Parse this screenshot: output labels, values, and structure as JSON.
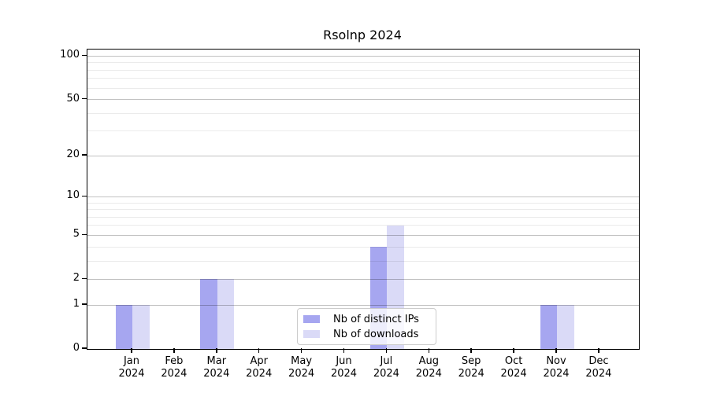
{
  "chart_data": {
    "type": "bar",
    "title": "Rsolnp 2024",
    "months": [
      "Jan",
      "Feb",
      "Mar",
      "Apr",
      "May",
      "Jun",
      "Jul",
      "Aug",
      "Sep",
      "Oct",
      "Nov",
      "Dec"
    ],
    "year": "2024",
    "series": [
      {
        "name": "Nb of distinct IPs",
        "color": "#a6a6f0",
        "values": [
          1,
          0,
          2,
          0,
          0,
          0,
          4,
          0,
          0,
          0,
          1,
          0
        ]
      },
      {
        "name": "Nb of downloads",
        "color": "#dadaf7",
        "values": [
          1,
          0,
          2,
          0,
          0,
          0,
          6,
          0,
          0,
          0,
          1,
          0
        ]
      }
    ],
    "yscale": "log1p",
    "ylim": [
      0,
      111
    ],
    "y_major_ticks": [
      0,
      1,
      2,
      5,
      10,
      20,
      50,
      100
    ],
    "y_minor_ticks": [
      3,
      4,
      6,
      7,
      8,
      9,
      30,
      40,
      60,
      70,
      80,
      90
    ],
    "grid": true,
    "legend_position": "lower center"
  },
  "colors": {
    "background": "#ffffff",
    "axis": "#000000",
    "grid_major": "#c2c2c2",
    "grid_minor": "#ebebeb",
    "legend_border": "#cccccc"
  }
}
